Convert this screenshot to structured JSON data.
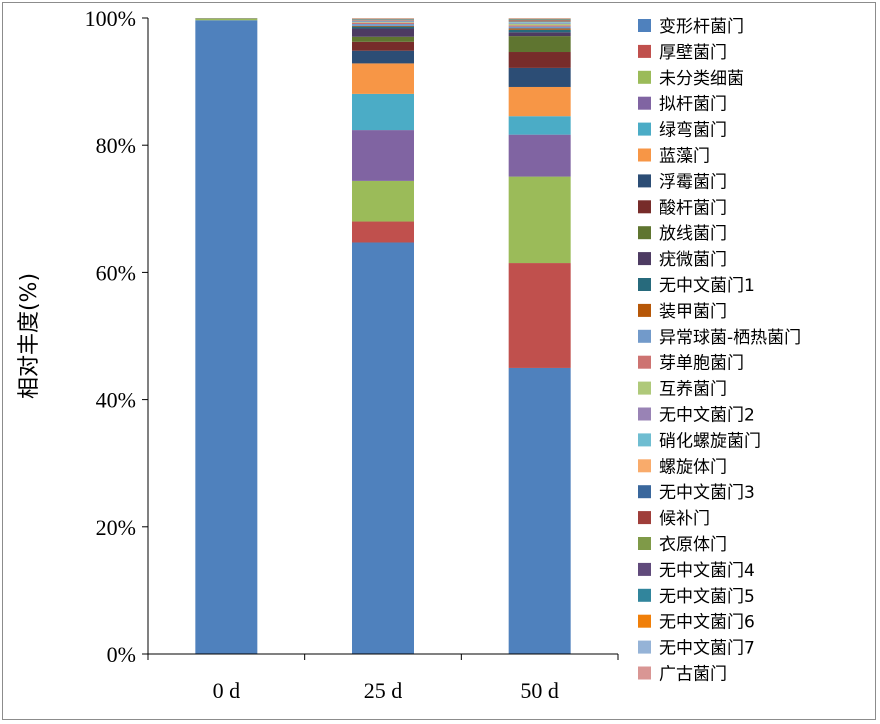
{
  "chart_data": {
    "type": "bar",
    "stacked": true,
    "percent": true,
    "categories": [
      "0 d",
      "25 d",
      "50 d"
    ],
    "ylabel": "相对丰度(%)",
    "yticks": [
      "0%",
      "20%",
      "40%",
      "60%",
      "80%",
      "100%"
    ],
    "ylim": [
      0,
      100
    ],
    "legend_position": "right",
    "series": [
      {
        "name": "变形杆菌门",
        "color": "#4f81bd",
        "values": [
          99.3,
          64.8,
          45.0
        ]
      },
      {
        "name": "厚壁菌门",
        "color": "#c0504d",
        "values": [
          0.0,
          3.3,
          16.5
        ]
      },
      {
        "name": "未分类细菌",
        "color": "#9bbb59",
        "values": [
          0.3,
          6.4,
          13.6
        ]
      },
      {
        "name": "拟杆菌门",
        "color": "#8064a2",
        "values": [
          0.05,
          8.0,
          6.6
        ]
      },
      {
        "name": "绿弯菌门",
        "color": "#4bacc6",
        "values": [
          0.0,
          5.7,
          2.9
        ]
      },
      {
        "name": "蓝藻门",
        "color": "#f79646",
        "values": [
          0.0,
          4.8,
          4.6
        ]
      },
      {
        "name": "浮霉菌门",
        "color": "#2c4d75",
        "values": [
          0.0,
          2.0,
          3.0
        ]
      },
      {
        "name": "酸杆菌门",
        "color": "#772c2a",
        "values": [
          0.0,
          1.4,
          2.5
        ]
      },
      {
        "name": "放线菌门",
        "color": "#5f7530",
        "values": [
          0.0,
          0.8,
          2.5
        ]
      },
      {
        "name": "疣微菌门",
        "color": "#4d3b62",
        "values": [
          0.0,
          1.3,
          0.6
        ]
      },
      {
        "name": "无中文菌门1",
        "color": "#276a7c",
        "values": [
          0.0,
          0.3,
          0.4
        ]
      },
      {
        "name": "装甲菌门",
        "color": "#b65708",
        "values": [
          0.0,
          0.1,
          0.2
        ]
      },
      {
        "name": "异常球菌-栖热菌门",
        "color": "#729aca",
        "values": [
          0.0,
          0.3,
          0.3
        ]
      },
      {
        "name": "芽单胞菌门",
        "color": "#cd7371",
        "values": [
          0.0,
          0.2,
          0.2
        ]
      },
      {
        "name": "互养菌门",
        "color": "#afc97a",
        "values": [
          0.0,
          0.1,
          0.2
        ]
      },
      {
        "name": "无中文菌门2",
        "color": "#9983b5",
        "values": [
          0.0,
          0.1,
          0.1
        ]
      },
      {
        "name": "硝化螺旋菌门",
        "color": "#6fbdd1",
        "values": [
          0.0,
          0.1,
          0.2
        ]
      },
      {
        "name": "螺旋体门",
        "color": "#f9ab6b",
        "values": [
          0.0,
          0.05,
          0.1
        ]
      },
      {
        "name": "无中文菌门3",
        "color": "#3a679c",
        "values": [
          0.0,
          0.05,
          0.1
        ]
      },
      {
        "name": "候补门",
        "color": "#9f3e3a",
        "values": [
          0.0,
          0.05,
          0.1
        ]
      },
      {
        "name": "衣原体门",
        "color": "#7f9a48",
        "values": [
          0.0,
          0.05,
          0.1
        ]
      },
      {
        "name": "无中文菌门4",
        "color": "#604a7b",
        "values": [
          0.0,
          0.05,
          0.05
        ]
      },
      {
        "name": "无中文菌门5",
        "color": "#31859c",
        "values": [
          0.0,
          0.05,
          0.05
        ]
      },
      {
        "name": "无中文菌门6",
        "color": "#f07f09",
        "values": [
          0.0,
          0.05,
          0.05
        ]
      },
      {
        "name": "无中文菌门7",
        "color": "#95b3d7",
        "values": [
          0.0,
          0.05,
          0.05
        ]
      },
      {
        "name": "广古菌门",
        "color": "#d99694",
        "values": [
          0.0,
          0.05,
          0.05
        ]
      }
    ]
  }
}
